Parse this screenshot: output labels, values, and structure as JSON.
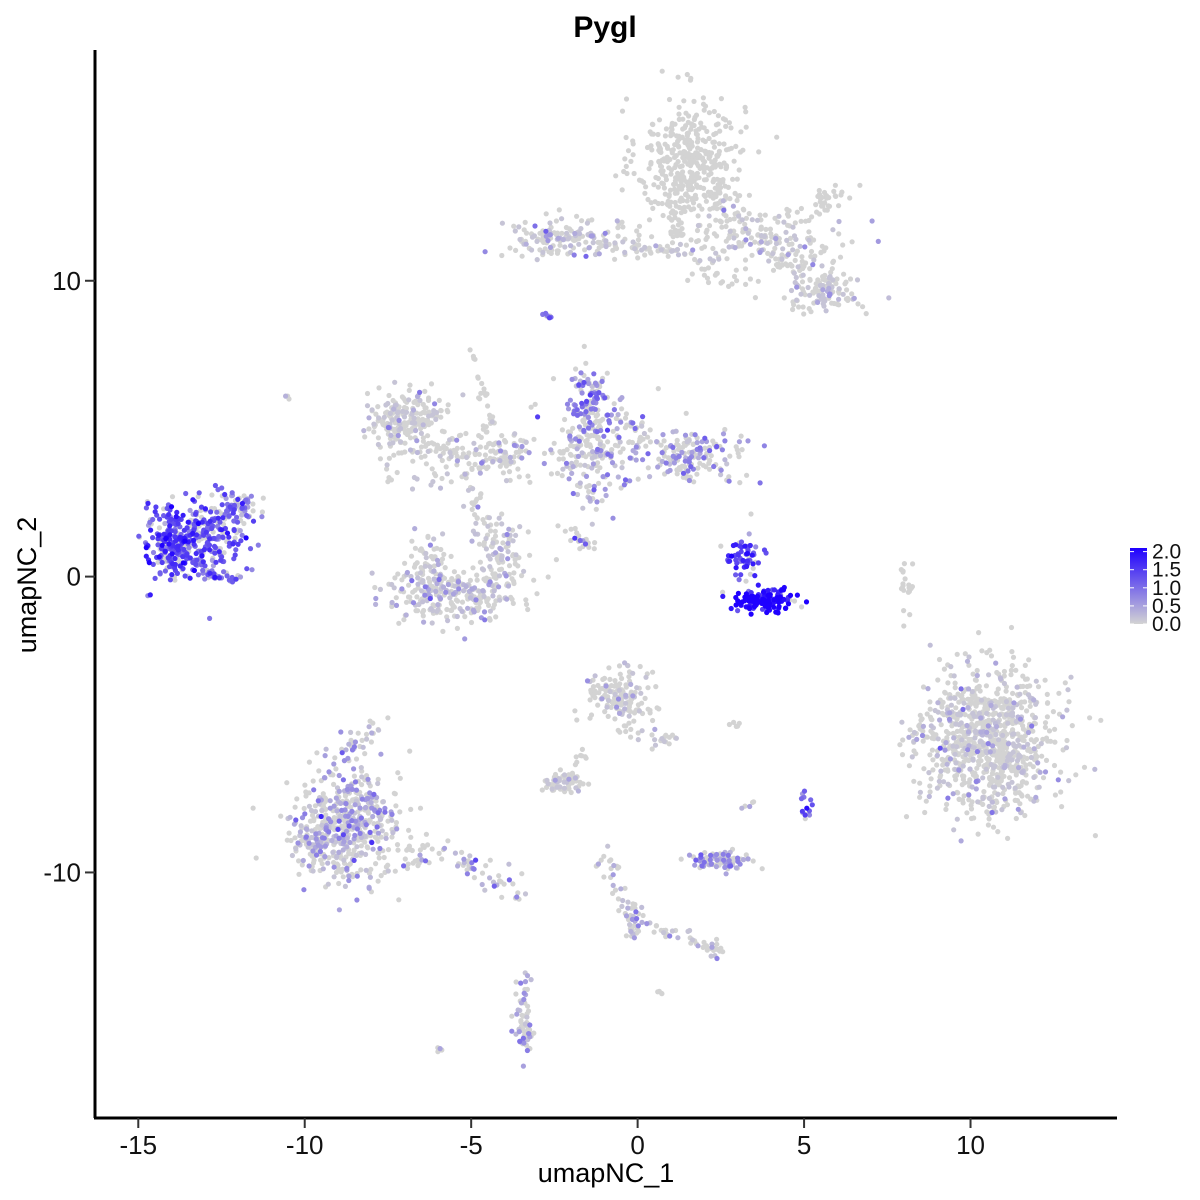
{
  "chart_data": {
    "type": "scatter",
    "title": "Pygl",
    "xlabel": "umapNC_1",
    "ylabel": "umapNC_2",
    "xlim": [
      -16.3,
      14.4
    ],
    "ylim": [
      -18.3,
      17.8
    ],
    "x_ticks": [
      -15,
      -10,
      -5,
      0,
      5,
      10
    ],
    "y_ticks": [
      -10,
      0,
      10
    ],
    "x_tick_labels": [
      "-15",
      "-10",
      "-5",
      "0",
      "5",
      "10"
    ],
    "y_tick_labels": [
      "-10",
      "0",
      "10"
    ],
    "grid": false,
    "point_color_low": "#d3d3d3",
    "point_color_high": "#1f00ff",
    "legend": {
      "placement": "right",
      "min": 0.0,
      "max": 2.1,
      "ticks": [
        0.0,
        0.5,
        1.0,
        1.5,
        2.0
      ],
      "tick_labels": [
        "0.0",
        "0.5",
        "1.0",
        "1.5",
        "2.0"
      ]
    },
    "clusters": [
      {
        "cx": 1.6,
        "cy": 14.0,
        "sx": 0.8,
        "sy": 1.1,
        "n": 420,
        "expr": 0.0
      },
      {
        "cx": 3.8,
        "cy": 11.4,
        "sx": 1.3,
        "sy": 0.6,
        "n": 150,
        "expr": 0.03
      },
      {
        "cx": 5.6,
        "cy": 9.6,
        "sx": 0.5,
        "sy": 0.4,
        "n": 90,
        "expr": 0.05
      },
      {
        "cx": -2.0,
        "cy": 11.5,
        "sx": 1.1,
        "sy": 0.4,
        "n": 110,
        "expr": 0.15
      },
      {
        "cx": -7.0,
        "cy": 5.4,
        "sx": 0.6,
        "sy": 0.4,
        "n": 170,
        "expr": 0.03
      },
      {
        "cx": -5.4,
        "cy": 4.1,
        "sx": 1.3,
        "sy": 0.5,
        "n": 120,
        "expr": 0.12
      },
      {
        "cx": -1.5,
        "cy": 5.9,
        "sx": 0.3,
        "sy": 0.6,
        "n": 90,
        "expr": 0.75
      },
      {
        "cx": -1.3,
        "cy": 4.3,
        "sx": 0.7,
        "sy": 0.9,
        "n": 180,
        "expr": 0.45
      },
      {
        "cx": 1.6,
        "cy": 4.1,
        "sx": 0.8,
        "sy": 0.5,
        "n": 160,
        "expr": 0.55
      },
      {
        "cx": -14.0,
        "cy": 1.2,
        "sx": 0.35,
        "sy": 0.6,
        "n": 180,
        "expr": 1.2
      },
      {
        "cx": -13.0,
        "cy": 1.3,
        "sx": 0.6,
        "sy": 0.7,
        "n": 260,
        "expr": 1.1
      },
      {
        "cx": -11.9,
        "cy": 2.3,
        "sx": 0.3,
        "sy": 0.35,
        "n": 35,
        "expr": 0.8
      },
      {
        "cx": -5.6,
        "cy": -0.6,
        "sx": 1.0,
        "sy": 0.45,
        "n": 260,
        "expr": 0.2
      },
      {
        "cx": -4.1,
        "cy": 0.7,
        "sx": 0.35,
        "sy": 0.6,
        "n": 90,
        "expr": 0.1
      },
      {
        "cx": -6.3,
        "cy": 0.5,
        "sx": 0.3,
        "sy": 0.5,
        "n": 60,
        "expr": 0.08
      },
      {
        "cx": 3.2,
        "cy": 0.7,
        "sx": 0.25,
        "sy": 0.4,
        "n": 60,
        "expr": 1.2
      },
      {
        "cx": 3.8,
        "cy": -0.8,
        "sx": 0.5,
        "sy": 0.2,
        "n": 130,
        "expr": 1.75
      },
      {
        "cx": 10.6,
        "cy": -5.6,
        "sx": 1.0,
        "sy": 1.2,
        "n": 900,
        "expr": 0.02
      },
      {
        "cx": -0.5,
        "cy": -4.0,
        "sx": 0.5,
        "sy": 0.5,
        "n": 150,
        "expr": 0.02
      },
      {
        "cx": -8.7,
        "cy": -8.3,
        "sx": 0.8,
        "sy": 1.0,
        "n": 480,
        "expr": 0.35
      },
      {
        "cx": -9.7,
        "cy": -9.2,
        "sx": 0.35,
        "sy": 0.45,
        "n": 70,
        "expr": 0.3
      },
      {
        "cx": -2.3,
        "cy": -7.0,
        "sx": 0.35,
        "sy": 0.18,
        "n": 60,
        "expr": 0.02
      },
      {
        "cx": 2.4,
        "cy": -9.6,
        "sx": 0.45,
        "sy": 0.18,
        "n": 90,
        "expr": 0.6
      },
      {
        "cx": 5.1,
        "cy": -7.6,
        "sx": 0.1,
        "sy": 0.25,
        "n": 14,
        "expr": 1.0
      },
      {
        "cx": 2.3,
        "cy": -12.6,
        "sx": 0.15,
        "sy": 0.15,
        "n": 18,
        "expr": 0.2
      },
      {
        "cx": -3.4,
        "cy": -15.3,
        "sx": 0.15,
        "sy": 0.45,
        "n": 40,
        "expr": 0.4
      },
      {
        "cx": -0.1,
        "cy": -11.7,
        "sx": 0.15,
        "sy": 0.35,
        "n": 25,
        "expr": 0.3
      },
      {
        "cx": 8.1,
        "cy": -0.4,
        "sx": 0.12,
        "sy": 0.5,
        "n": 20,
        "expr": 0.0
      },
      {
        "cx": 5.7,
        "cy": 12.7,
        "sx": 0.3,
        "sy": 0.25,
        "n": 30,
        "expr": 0.0
      }
    ],
    "paths": [
      {
        "x1": -8.0,
        "y1": 5.0,
        "x2": -4.5,
        "y2": 3.8,
        "n": 55,
        "jitter": 0.2,
        "expr": 0.05
      },
      {
        "x1": -4.9,
        "y1": 7.6,
        "x2": -4.2,
        "y2": 3.8,
        "n": 30,
        "jitter": 0.1,
        "expr": 0.0
      },
      {
        "x1": -4.3,
        "y1": 3.7,
        "x2": -3.1,
        "y2": 4.7,
        "n": 30,
        "jitter": 0.15,
        "expr": 0.2
      },
      {
        "x1": -5.0,
        "y1": 3.2,
        "x2": -4.6,
        "y2": 1.0,
        "n": 28,
        "jitter": 0.15,
        "expr": 0.05
      },
      {
        "x1": -3.4,
        "y1": 11.4,
        "x2": -1.5,
        "y2": 11.4,
        "n": 45,
        "jitter": 0.2,
        "expr": 0.12
      },
      {
        "x1": -1.0,
        "y1": 11.2,
        "x2": 1.6,
        "y2": 11.0,
        "n": 45,
        "jitter": 0.15,
        "expr": 0.03
      },
      {
        "x1": 1.1,
        "y1": 11.3,
        "x2": 1.4,
        "y2": 12.8,
        "n": 25,
        "jitter": 0.15,
        "expr": 0.0
      },
      {
        "x1": 2.5,
        "y1": 12.6,
        "x2": 5.8,
        "y2": 9.8,
        "n": 100,
        "jitter": 0.35,
        "expr": 0.02
      },
      {
        "x1": 1.5,
        "y1": 10.4,
        "x2": 3.5,
        "y2": 10.0,
        "n": 20,
        "jitter": 0.2,
        "expr": 0.0
      },
      {
        "x1": -2.2,
        "y1": 3.4,
        "x2": -1.4,
        "y2": 4.8,
        "n": 20,
        "jitter": 0.2,
        "expr": 0.3
      },
      {
        "x1": -2.2,
        "y1": 1.6,
        "x2": -1.5,
        "y2": 0.9,
        "n": 12,
        "jitter": 0.1,
        "expr": 0.0
      },
      {
        "x1": -1.9,
        "y1": 1.4,
        "x2": -1.3,
        "y2": 0.9,
        "n": 8,
        "jitter": 0.08,
        "expr": 0.7
      },
      {
        "x1": -0.8,
        "y1": 5.6,
        "x2": 0.5,
        "y2": 4.5,
        "n": 25,
        "jitter": 0.2,
        "expr": 0.5
      },
      {
        "x1": -12.8,
        "y1": 1.8,
        "x2": -11.6,
        "y2": 2.8,
        "n": 22,
        "jitter": 0.1,
        "expr": 1.0
      },
      {
        "x1": -12.9,
        "y1": 0.1,
        "x2": -12.0,
        "y2": -0.1,
        "n": 25,
        "jitter": 0.08,
        "expr": 0.9
      },
      {
        "x1": -8.0,
        "y1": -8.7,
        "x2": -3.7,
        "y2": -10.5,
        "n": 90,
        "jitter": 0.3,
        "expr": 0.35
      },
      {
        "x1": -9.0,
        "y1": -6.0,
        "x2": -8.0,
        "y2": -5.2,
        "n": 30,
        "jitter": 0.2,
        "expr": 0.3
      },
      {
        "x1": -3.5,
        "y1": -13.3,
        "x2": -3.3,
        "y2": -16.0,
        "n": 30,
        "jitter": 0.12,
        "expr": 0.25
      },
      {
        "x1": -1.0,
        "y1": -9.2,
        "x2": 0.0,
        "y2": -12.3,
        "n": 30,
        "jitter": 0.12,
        "expr": 0.15
      },
      {
        "x1": 0.5,
        "y1": -11.8,
        "x2": 2.3,
        "y2": -12.5,
        "n": 25,
        "jitter": 0.12,
        "expr": 0.05
      },
      {
        "x1": -2.2,
        "y1": -7.2,
        "x2": -1.6,
        "y2": -5.9,
        "n": 15,
        "jitter": 0.1,
        "expr": 0.0
      },
      {
        "x1": -0.8,
        "y1": -5.2,
        "x2": 1.2,
        "y2": -5.6,
        "n": 25,
        "jitter": 0.15,
        "expr": 0.05
      },
      {
        "x1": 8.0,
        "y1": -5.5,
        "x2": 9.3,
        "y2": -4.4,
        "n": 20,
        "jitter": 0.15,
        "expr": 0.02
      },
      {
        "x1": -1.2,
        "y1": -9.8,
        "x2": -0.8,
        "y2": -9.5,
        "n": 5,
        "jitter": 0.05,
        "expr": 0.05
      },
      {
        "x1": -6.1,
        "y1": -16.1,
        "x2": -5.9,
        "y2": -15.9,
        "n": 6,
        "jitter": 0.05,
        "expr": 0.3
      },
      {
        "x1": -2.8,
        "y1": 8.9,
        "x2": -2.6,
        "y2": 8.7,
        "n": 8,
        "jitter": 0.05,
        "expr": 0.9
      },
      {
        "x1": 2.6,
        "y1": -5.1,
        "x2": 3.1,
        "y2": -5.0,
        "n": 5,
        "jitter": 0.05,
        "expr": 0.0
      },
      {
        "x1": 3.0,
        "y1": -7.9,
        "x2": 3.5,
        "y2": -7.6,
        "n": 5,
        "jitter": 0.05,
        "expr": 0.1
      },
      {
        "x1": -10.6,
        "y1": 6.1,
        "x2": -10.5,
        "y2": 6.0,
        "n": 3,
        "jitter": 0.03,
        "expr": 0.3
      },
      {
        "x1": 0.6,
        "y1": -14.0,
        "x2": 0.8,
        "y2": -14.1,
        "n": 4,
        "jitter": 0.03,
        "expr": 0.0
      }
    ]
  }
}
